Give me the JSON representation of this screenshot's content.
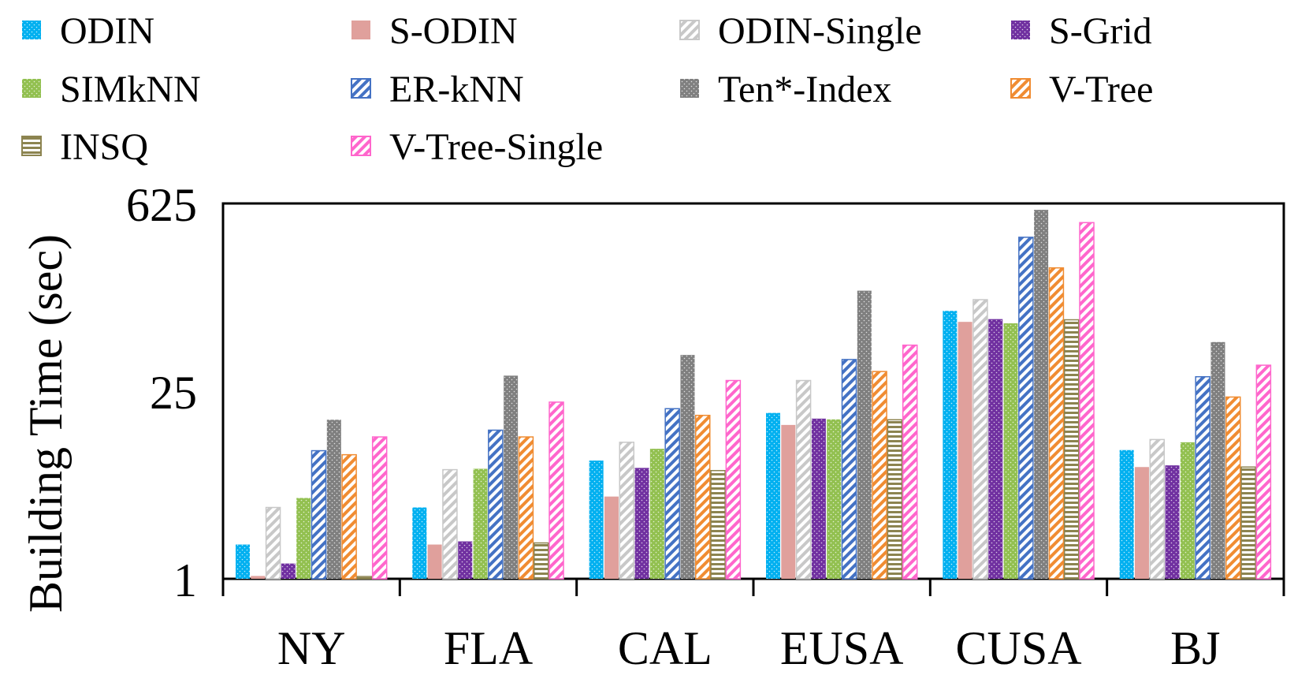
{
  "chart_data": {
    "type": "bar",
    "yscale": "log",
    "ylabel": "Building Time (sec)",
    "xlabel": "",
    "ylim": [
      1,
      625
    ],
    "yticks": [
      1,
      25,
      625
    ],
    "ytick_labels": [
      "1",
      "25",
      "625"
    ],
    "categories": [
      "NY",
      "FLA",
      "CAL",
      "EUSA",
      "CUSA",
      "BJ"
    ],
    "legend_position": "top",
    "series": [
      {
        "name": "ODIN",
        "color": "#00b0f0",
        "pattern": "dots",
        "values": [
          1.8,
          3.4,
          7.6,
          17.2,
          99,
          9.1
        ]
      },
      {
        "name": "S-ODIN",
        "color": "#e0a09c",
        "pattern": "solid",
        "values": [
          1.05,
          1.8,
          4.1,
          14.0,
          82,
          6.8
        ]
      },
      {
        "name": "ODIN-Single",
        "color": "#c8c8c8",
        "pattern": "diag",
        "values": [
          3.4,
          6.5,
          10.4,
          30,
          120,
          10.9
        ]
      },
      {
        "name": "S-Grid",
        "color": "#7030a0",
        "pattern": "dots",
        "values": [
          1.3,
          1.9,
          6.7,
          15.6,
          86,
          7.0
        ]
      },
      {
        "name": "SIMkNN",
        "color": "#92c050",
        "pattern": "dots",
        "values": [
          4.0,
          6.6,
          9.3,
          15.4,
          80,
          10.4
        ]
      },
      {
        "name": "ER-kNN",
        "color": "#4472c4",
        "pattern": "diag",
        "values": [
          9.0,
          12.8,
          18.5,
          43,
          350,
          32
        ]
      },
      {
        "name": "Ten*-Index",
        "color": "#7f7f7f",
        "pattern": "dots",
        "values": [
          15.3,
          32.6,
          46.5,
          140,
          560,
          58
        ]
      },
      {
        "name": "V-Tree",
        "color": "#f08c32",
        "pattern": "diag",
        "values": [
          8.4,
          11.4,
          16.5,
          35,
          207,
          22.6
        ]
      },
      {
        "name": "INSQ",
        "color": "#8c8450",
        "pattern": "hlines",
        "values": [
          1.04,
          1.85,
          6.4,
          15.3,
          85,
          6.8
        ]
      },
      {
        "name": "V-Tree-Single",
        "color": "#ff66cc",
        "pattern": "diag",
        "values": [
          11.4,
          20.7,
          30,
          55,
          450,
          39
        ]
      }
    ]
  }
}
